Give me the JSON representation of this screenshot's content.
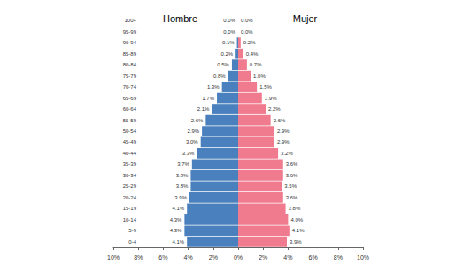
{
  "chart_data": {
    "type": "bar",
    "orientation": "horizontal",
    "data_labels": true,
    "grid": false,
    "categories": [
      "0-4",
      "5-9",
      "10-14",
      "15-19",
      "20-24",
      "25-29",
      "30-34",
      "35-39",
      "40-44",
      "45-49",
      "50-54",
      "55-59",
      "60-64",
      "65-69",
      "70-74",
      "75-79",
      "80-84",
      "85-89",
      "90-94",
      "95-99",
      "100+"
    ],
    "series": [
      {
        "name": "Hombre",
        "color": "#4a80bd",
        "values": [
          4.1,
          4.3,
          4.3,
          4.1,
          3.9,
          3.8,
          3.8,
          3.7,
          3.3,
          3.0,
          2.9,
          2.6,
          2.1,
          1.7,
          1.3,
          0.8,
          0.5,
          0.2,
          0.1,
          0.0,
          0.0
        ],
        "value_labels": [
          "4.1%",
          "4.3%",
          "4.3%",
          "4.1%",
          "3.9%",
          "3.8%",
          "3.8%",
          "3.7%",
          "3.3%",
          "3.0%",
          "2.9%",
          "2.6%",
          "2.1%",
          "1.7%",
          "1.3%",
          "0.8%",
          "0.5%",
          "0.2%",
          "0.1%",
          "0.0%",
          "0.0%"
        ]
      },
      {
        "name": "Mujer",
        "color": "#f07a8e",
        "values": [
          3.9,
          4.1,
          4.0,
          3.8,
          3.6,
          3.5,
          3.6,
          3.6,
          3.2,
          2.9,
          2.9,
          2.6,
          2.2,
          1.9,
          1.5,
          1.0,
          0.7,
          0.4,
          0.2,
          0.0,
          0.0
        ],
        "value_labels": [
          "3.9%",
          "4.1%",
          "4.0%",
          "3.8%",
          "3.6%",
          "3.5%",
          "3.6%",
          "3.6%",
          "3.2%",
          "2.9%",
          "2.9%",
          "2.6%",
          "2.2%",
          "1.9%",
          "1.5%",
          "1.0%",
          "0.7%",
          "0.4%",
          "0.2%",
          "0.0%",
          "0.0%"
        ]
      }
    ],
    "xlim": [
      0,
      10
    ],
    "xticks": [
      {
        "value": 0,
        "label": "0%"
      },
      {
        "value": 2,
        "label": "2%"
      },
      {
        "value": 4,
        "label": "4%"
      },
      {
        "value": 6,
        "label": "6%"
      },
      {
        "value": 8,
        "label": "8%"
      },
      {
        "value": 10,
        "label": "10%"
      }
    ]
  }
}
